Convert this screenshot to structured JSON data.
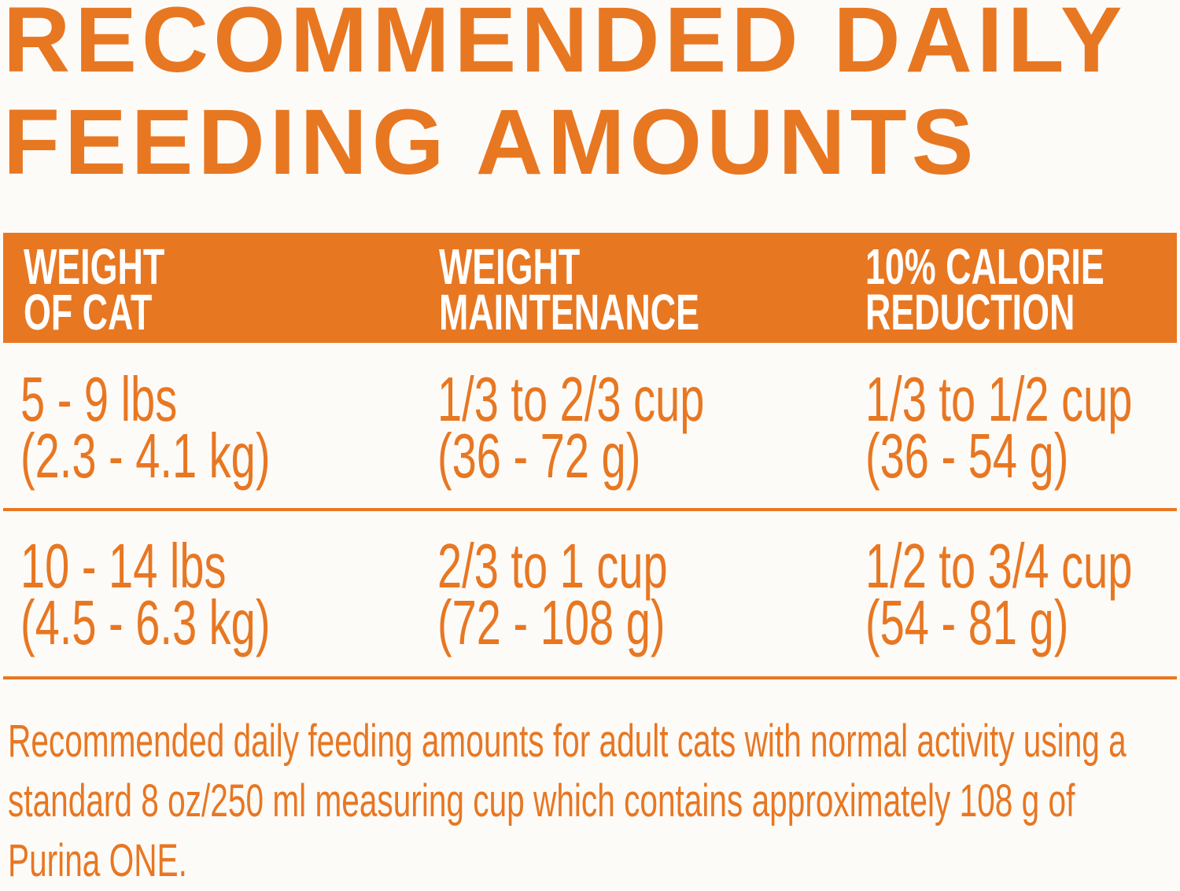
{
  "title": {
    "line1": "RECOMMENDED DAILY",
    "line2": "FEEDING AMOUNTS"
  },
  "table": {
    "headers": [
      {
        "line1": "WEIGHT",
        "line2": "OF CAT"
      },
      {
        "line1": "WEIGHT",
        "line2": "MAINTENANCE"
      },
      {
        "line1": "10% CALORIE",
        "line2": "REDUCTION"
      }
    ],
    "rows": [
      [
        {
          "line1": "5 - 9 lbs",
          "line2": "(2.3 - 4.1 kg)"
        },
        {
          "line1": "1/3 to 2/3 cup",
          "line2": "(36 - 72 g)"
        },
        {
          "line1": "1/3 to 1/2 cup",
          "line2": "(36 - 54 g)"
        }
      ],
      [
        {
          "line1": "10 - 14 lbs",
          "line2": "(4.5 - 6.3 kg)"
        },
        {
          "line1": "2/3 to 1 cup",
          "line2": "(72 - 108 g)"
        },
        {
          "line1": "1/2 to 3/4 cup",
          "line2": "(54 - 81 g)"
        }
      ]
    ]
  },
  "footer": "Recommended daily feeding amounts for adult cats with normal activity using a standard 8 oz/250 ml measuring cup which contains approximately 108 g of Purina ONE.",
  "colors": {
    "accent": "#e87722",
    "background": "#fdfbf8"
  }
}
